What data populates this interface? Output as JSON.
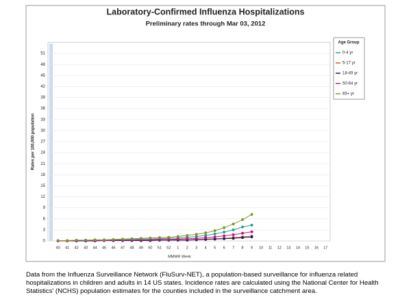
{
  "chart_data": {
    "type": "line",
    "title": "Laboratory-Confirmed Influenza Hospitalizations",
    "subtitle": "Preliminary rates through Mar 03, 2012",
    "y_label": "Rates per 100,000 population",
    "x_label": "MMWR Week",
    "legend_title": "Age Group",
    "legend": "right",
    "categories": [
      "40",
      "41",
      "42",
      "43",
      "44",
      "45",
      "46",
      "47",
      "48",
      "49",
      "50",
      "51",
      "52",
      "1",
      "2",
      "3",
      "4",
      "5",
      "6",
      "7",
      "8",
      "9",
      "10",
      "11",
      "12",
      "13",
      "14",
      "15",
      "16",
      "17"
    ],
    "ylim": [
      0,
      54
    ],
    "yticks": [
      0,
      3,
      6,
      9,
      12,
      15,
      18,
      21,
      24,
      27,
      30,
      33,
      36,
      39,
      42,
      45,
      48,
      51
    ],
    "grid": true,
    "series": [
      {
        "name": "0-4 yr",
        "color": "#2a9d8f",
        "values": [
          0.1,
          0.1,
          0.1,
          0.2,
          0.2,
          0.2,
          0.3,
          0.3,
          0.4,
          0.5,
          0.5,
          0.6,
          0.7,
          0.8,
          1.0,
          1.2,
          1.5,
          1.9,
          2.4,
          3.0,
          3.8,
          4.3,
          null,
          null,
          null,
          null,
          null,
          null,
          null,
          null
        ]
      },
      {
        "name": "5-17 yr",
        "color": "#e0522a",
        "values": [
          0,
          0,
          0,
          0,
          0.1,
          0.1,
          0.1,
          0.1,
          0.1,
          0.1,
          0.2,
          0.2,
          0.2,
          0.3,
          0.3,
          0.4,
          0.5,
          0.6,
          0.7,
          0.9,
          1.1,
          1.3,
          null,
          null,
          null,
          null,
          null,
          null,
          null,
          null
        ]
      },
      {
        "name": "18-49 yr",
        "color": "#1f1f5c",
        "values": [
          0,
          0,
          0,
          0,
          0,
          0.1,
          0.1,
          0.1,
          0.1,
          0.1,
          0.1,
          0.2,
          0.2,
          0.2,
          0.2,
          0.3,
          0.4,
          0.5,
          0.6,
          0.7,
          0.9,
          1.1,
          null,
          null,
          null,
          null,
          null,
          null,
          null,
          null
        ]
      },
      {
        "name": "50-64 yr",
        "color": "#c0158a",
        "values": [
          0,
          0,
          0.1,
          0.1,
          0.1,
          0.1,
          0.2,
          0.2,
          0.2,
          0.3,
          0.3,
          0.4,
          0.4,
          0.5,
          0.6,
          0.7,
          0.9,
          1.1,
          1.4,
          1.7,
          2.1,
          2.5,
          null,
          null,
          null,
          null,
          null,
          null,
          null,
          null
        ]
      },
      {
        "name": "65+ yr",
        "color": "#7a9a2a",
        "values": [
          0.1,
          0.1,
          0.2,
          0.2,
          0.3,
          0.3,
          0.4,
          0.5,
          0.6,
          0.7,
          0.8,
          0.9,
          1.0,
          1.2,
          1.5,
          1.8,
          2.2,
          2.8,
          3.6,
          4.6,
          5.8,
          7.2,
          null,
          null,
          null,
          null,
          null,
          null,
          null,
          null
        ]
      }
    ]
  },
  "caption": [
    "Data from the Influenza  Surveillance Network (FluSurv-NET),  a population-based surveillance  for influenza  related",
    "hospitalizations in children and adults  in 14 US states.  Incidence rates are calculated using the National Center for Health",
    "Statistics' (NCHS) population estimates for the counties included in the surveillance  catchment  area."
  ]
}
